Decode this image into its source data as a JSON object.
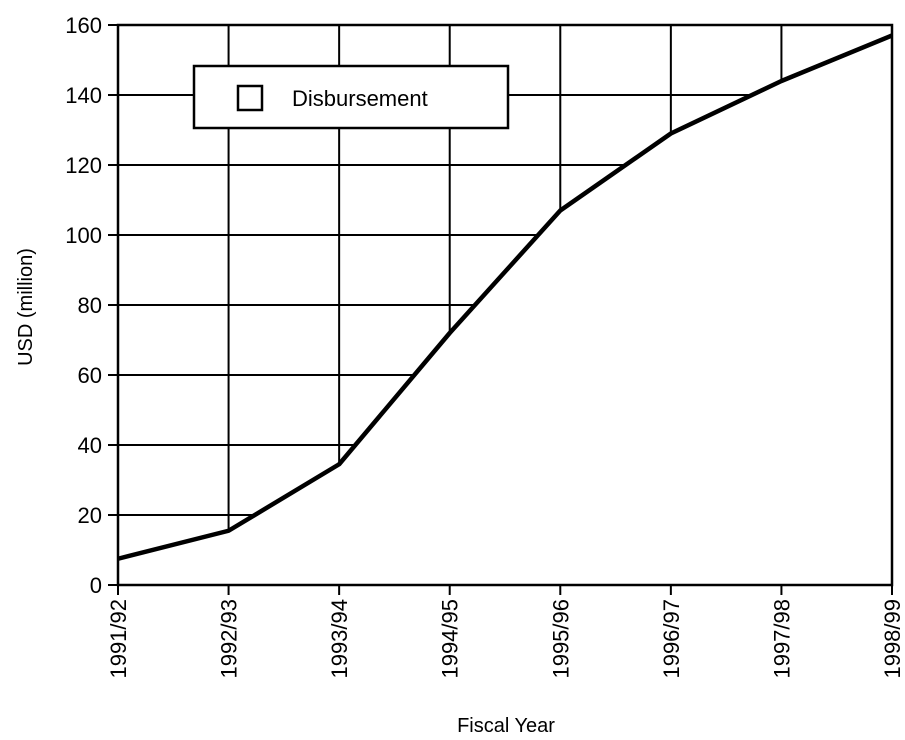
{
  "chart_data": {
    "type": "area",
    "categories": [
      "1991/92",
      "1992/93",
      "1993/94",
      "1994/95",
      "1995/96",
      "1996/97",
      "1997/98",
      "1998/99"
    ],
    "series": [
      {
        "name": "Disbursement",
        "values": [
          7.5,
          15.5,
          34.5,
          72,
          107,
          129,
          144,
          157
        ]
      }
    ],
    "xlabel": "Fiscal Year",
    "ylabel": "USD (million)",
    "ylim": [
      0,
      160
    ],
    "yticks": [
      "0",
      "20",
      "40",
      "60",
      "80",
      "100",
      "120",
      "140",
      "160"
    ],
    "grid": true,
    "legend": "top-left",
    "colors": {
      "line": "#000000",
      "fill": "#ffffff",
      "grid": "#000000"
    }
  }
}
